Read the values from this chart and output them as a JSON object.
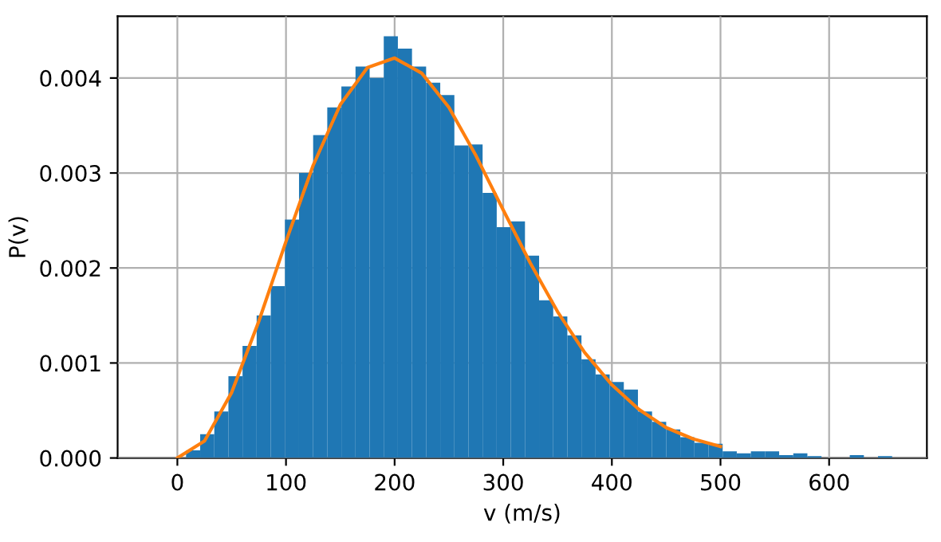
{
  "chart_data": {
    "type": "histogram",
    "xlabel": "v (m/s)",
    "ylabel": "P(v)",
    "bins": [
      8,
      21,
      34,
      47,
      60,
      73,
      86,
      99,
      112,
      125,
      138,
      151,
      164,
      177,
      190,
      203,
      216,
      229,
      242,
      255,
      268,
      281,
      294,
      307,
      320,
      333,
      346,
      359,
      372,
      385,
      398,
      411,
      424,
      437,
      450,
      463,
      476,
      489,
      502,
      515,
      528,
      541,
      554,
      567,
      580,
      593,
      606,
      619,
      632,
      645,
      658
    ],
    "values": [
      8e-05,
      0.00025,
      0.00049,
      0.00086,
      0.00118,
      0.0015,
      0.00181,
      0.00251,
      0.003,
      0.0034,
      0.00369,
      0.00391,
      0.00412,
      0.004,
      0.00444,
      0.00431,
      0.00412,
      0.00395,
      0.00382,
      0.00329,
      0.0033,
      0.00279,
      0.00243,
      0.00249,
      0.00213,
      0.00166,
      0.00149,
      0.00129,
      0.00104,
      0.00088,
      0.0008,
      0.00072,
      0.00049,
      0.00038,
      0.0003,
      0.00022,
      0.00016,
      0.00015,
      7e-05,
      5e-05,
      7e-05,
      7e-05,
      3e-05,
      5e-05,
      2e-05,
      0,
      0,
      3e-05,
      0,
      2e-05
    ],
    "color": "#1f77b4",
    "series": [
      {
        "type": "line",
        "color": "#ff7f0e",
        "x": [
          0,
          25,
          50,
          75,
          100,
          125,
          150,
          175,
          200,
          225,
          250,
          275,
          300,
          325,
          350,
          375,
          400,
          425,
          450,
          475,
          500
        ],
        "values": [
          0,
          0.00018,
          0.00069,
          0.00144,
          0.00228,
          0.00308,
          0.00372,
          0.00411,
          0.00421,
          0.00405,
          0.00369,
          0.00318,
          0.00261,
          0.00205,
          0.00154,
          0.00111,
          0.00077,
          0.00051,
          0.00032,
          0.0002,
          0.00012
        ]
      }
    ],
    "xlim": [
      -55,
      690
    ],
    "ylim": [
      0,
      0.00465
    ],
    "xticks": [
      0,
      100,
      200,
      300,
      400,
      500,
      600
    ],
    "yticks": [
      {
        "value": 0,
        "label": "0.000"
      },
      {
        "value": 0.001,
        "label": "0.001"
      },
      {
        "value": 0.002,
        "label": "0.002"
      },
      {
        "value": 0.003,
        "label": "0.003"
      },
      {
        "value": 0.004,
        "label": "0.004"
      }
    ],
    "grid": true
  }
}
